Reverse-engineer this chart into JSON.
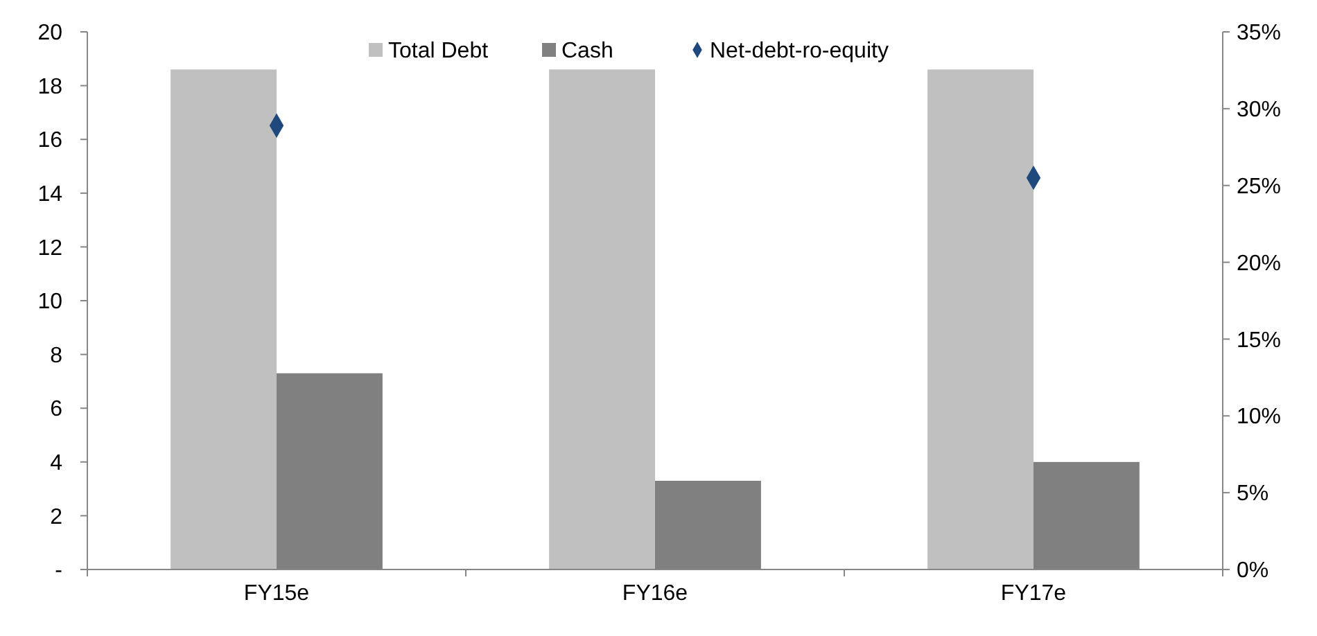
{
  "chart_data": {
    "type": "bar",
    "categories": [
      "FY15e",
      "FY16e",
      "FY17e"
    ],
    "series": [
      {
        "name": "Total Debt",
        "color": "#c0c0c0",
        "values": [
          18.6,
          18.6,
          18.6
        ]
      },
      {
        "name": "Cash",
        "color": "#808080",
        "values": [
          7.3,
          3.3,
          4.0
        ]
      },
      {
        "name": "Net-debt-ro-equity",
        "type": "scatter",
        "axis": "y2",
        "color": "#1f497d",
        "values": [
          28.9,
          null,
          25.5
        ]
      }
    ],
    "ylim": [
      0,
      20
    ],
    "yticks": [
      {
        "value": 0,
        "label": "-"
      },
      2,
      4,
      6,
      8,
      10,
      12,
      14,
      16,
      18,
      20
    ],
    "y2lim": [
      0,
      35
    ],
    "y2ticks": [
      {
        "value": 0,
        "label": "0%"
      },
      {
        "value": 5,
        "label": "5%"
      },
      {
        "value": 10,
        "label": "10%"
      },
      {
        "value": 15,
        "label": "15%"
      },
      {
        "value": 20,
        "label": "20%"
      },
      {
        "value": 25,
        "label": "25%"
      },
      {
        "value": 30,
        "label": "30%"
      },
      {
        "value": 35,
        "label": "35%"
      }
    ],
    "marker": "diamond",
    "legend": "top",
    "grid": false
  }
}
